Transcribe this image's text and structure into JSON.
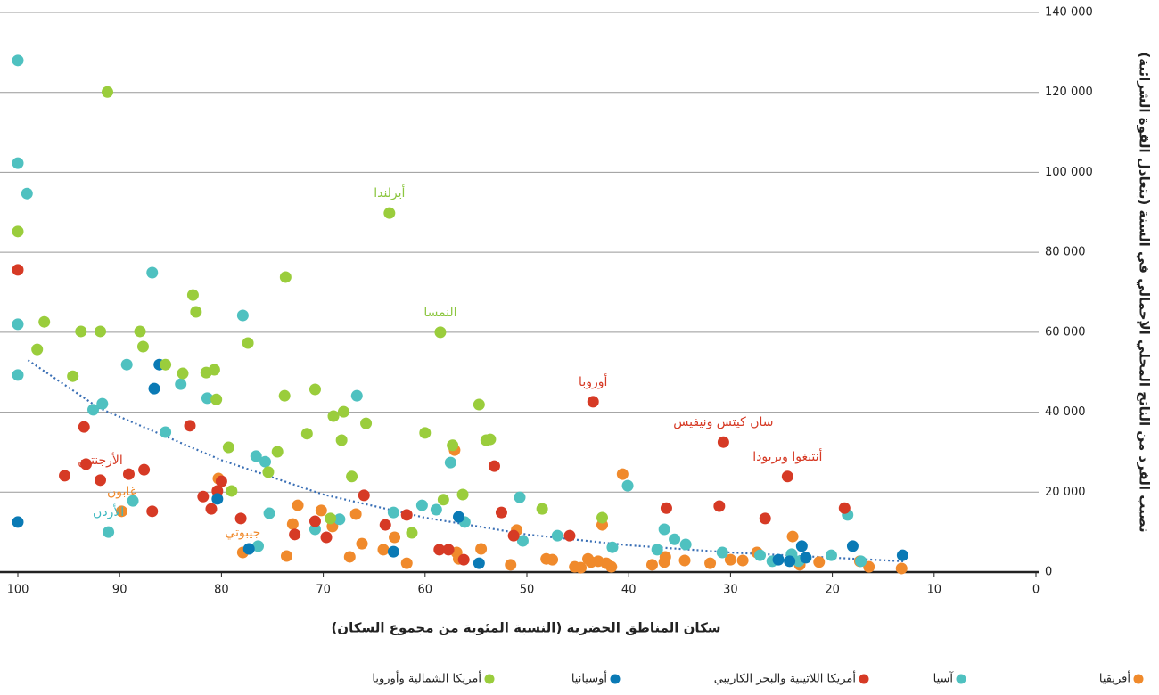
{
  "chart_data": {
    "type": "scatter",
    "xlabel": "سكان المناطق الحضرية (النسبة المئوية من مجموع السكان)",
    "ylabel": "نصيب الفرد من الناتج المحلي الإجمالي في السنة (بتعادل القوة الشرائية)",
    "xlim": [
      100,
      0
    ],
    "ylim": [
      0,
      140000
    ],
    "xticks": [
      100,
      90,
      80,
      70,
      60,
      50,
      40,
      30,
      20,
      10,
      0
    ],
    "yticks": [
      0,
      {
        "value": 20000,
        "label": "20 000"
      },
      {
        "value": 40000,
        "label": "40 000"
      },
      {
        "value": 60000,
        "label": "60 000"
      },
      {
        "value": 80000,
        "label": "80 000"
      },
      {
        "value": 100000,
        "label": "100 000"
      },
      {
        "value": 120000,
        "label": "120 000"
      },
      {
        "value": 140000,
        "label": "140 000"
      }
    ],
    "grid": true,
    "series": [
      {
        "name": "أفريقيا",
        "color": "#f08a2c",
        "x": [
          89.8,
          77.9,
          80.3,
          73.6,
          72.5,
          73,
          70.2,
          69.1,
          66.8,
          67.4,
          66.2,
          64.1,
          63,
          61.8,
          57.1,
          56.9,
          56.7,
          54.5,
          51.6,
          51,
          48.1,
          47.5,
          45.3,
          44.7,
          44,
          43.7,
          43,
          42.6,
          42.2,
          41.7,
          40.6,
          37.7,
          36.5,
          36.4,
          34.5,
          32,
          30,
          28.8,
          27.4,
          23.9,
          23.2,
          21.3,
          17.3,
          16.4,
          13.2
        ],
        "values": [
          15200,
          4900,
          23400,
          4000,
          16700,
          12000,
          15400,
          11400,
          14500,
          3800,
          7100,
          5600,
          8700,
          2200,
          30500,
          4900,
          3300,
          5800,
          1800,
          10500,
          3300,
          3100,
          1300,
          1100,
          3300,
          2500,
          2700,
          11800,
          2200,
          1300,
          24500,
          1800,
          2500,
          3800,
          2900,
          2200,
          3100,
          2900,
          4900,
          8900,
          1800,
          2500,
          2700,
          1300,
          900
        ]
      },
      {
        "name": "آسيا",
        "color": "#4fc1c0",
        "x": [
          100,
          100,
          99.1,
          100,
          100,
          89.3,
          92.6,
          91.7,
          91.1,
          88.7,
          86.8,
          85.5,
          84,
          81.4,
          77.9,
          76.6,
          75.7,
          75.3,
          76.4,
          66.7,
          70.8,
          68.4,
          63.1,
          60.3,
          58.9,
          57.5,
          56.1,
          50.7,
          50.4,
          47,
          41.6,
          40.1,
          37.2,
          36.5,
          35.5,
          34.4,
          30.8,
          27.1,
          25.9,
          24,
          20.1,
          18.5,
          17.2,
          23.3
        ],
        "values": [
          128000,
          102300,
          94700,
          62000,
          49300,
          51900,
          40600,
          42100,
          10000,
          17800,
          74900,
          35000,
          47000,
          43500,
          64200,
          29000,
          27600,
          14700,
          6500,
          44100,
          10700,
          13200,
          14900,
          16700,
          15600,
          27400,
          12500,
          18700,
          7800,
          9100,
          6200,
          21600,
          5600,
          10700,
          8200,
          6900,
          4900,
          4200,
          2700,
          4500,
          4200,
          14300,
          2700,
          2700
        ]
      },
      {
        "name": "أمريكا اللاتينية والبحر الكاريبي",
        "color": "#d63a25",
        "x": [
          100,
          93.5,
          95.4,
          93.3,
          91.9,
          89.1,
          87.6,
          86.8,
          83.1,
          81.8,
          81,
          80.4,
          80,
          78.1,
          72.8,
          70.8,
          69.7,
          66,
          63.9,
          61.8,
          58.6,
          57.7,
          56.2,
          53.2,
          52.5,
          51.3,
          45.8,
          43.5,
          36.3,
          31.1,
          30.7,
          26.6,
          24.4,
          18.8
        ],
        "values": [
          75600,
          36300,
          24100,
          27000,
          23000,
          24500,
          25600,
          15200,
          36600,
          18900,
          15800,
          20300,
          22700,
          13400,
          9400,
          12700,
          8700,
          19200,
          11800,
          14300,
          5600,
          5600,
          3100,
          26500,
          14900,
          9100,
          9100,
          42600,
          16000,
          16500,
          32500,
          13400,
          23900,
          16000
        ]
      },
      {
        "name": "أوسيانيا",
        "color": "#0a7ab5",
        "x": [
          100,
          86.1,
          86.6,
          80.4,
          77.3,
          63.1,
          56.7,
          54.7,
          25.3,
          24.2,
          23,
          22.6,
          18,
          13.1
        ],
        "values": [
          12500,
          51900,
          45900,
          18300,
          5800,
          5100,
          13800,
          2200,
          3100,
          2700,
          6500,
          3600,
          6500,
          4200
        ]
      },
      {
        "name": "أمريكا الشمالية وأوروبا",
        "color": "#9acd3c",
        "x": [
          100,
          63.5,
          91.2,
          97.4,
          98.1,
          94.6,
          93.8,
          91.9,
          88,
          87.7,
          85.5,
          83.8,
          82.8,
          82.5,
          81.5,
          80.7,
          80.5,
          79.3,
          79,
          77.4,
          75.4,
          74.5,
          73.7,
          73.8,
          71.6,
          70.8,
          69,
          68,
          68.2,
          67.2,
          65.8,
          61.3,
          60,
          58.5,
          58.2,
          57.3,
          56.3,
          54.7,
          54,
          53.6,
          48.5,
          42.6,
          69.3
        ],
        "values": [
          85200,
          89800,
          120100,
          62600,
          55700,
          49000,
          60200,
          60200,
          60200,
          56400,
          51900,
          49700,
          69300,
          65100,
          49900,
          50600,
          43200,
          31200,
          20300,
          57300,
          25000,
          30100,
          73800,
          44100,
          34600,
          45700,
          39000,
          40100,
          33000,
          23900,
          37200,
          9800,
          34800,
          60000,
          18100,
          31700,
          19400,
          41900,
          33000,
          33200,
          15800,
          13600,
          13400
        ]
      }
    ],
    "trendline": {
      "color": "#3a6fb5",
      "x": [
        99,
        92,
        80,
        70,
        60,
        50,
        40,
        30,
        20,
        13
      ],
      "y": [
        53000,
        41000,
        28000,
        19400,
        13600,
        9400,
        6700,
        4900,
        3600,
        2700
      ]
    },
    "annotations": [
      {
        "text": "أيرلندا",
        "x": 63.5,
        "y": 89800,
        "color": "#8cc63f"
      },
      {
        "text": "النمسا",
        "x": 58.5,
        "y": 60000,
        "color": "#8cc63f"
      },
      {
        "text": "أوروبا",
        "x": 43.5,
        "y": 42600,
        "color": "#d63a25"
      },
      {
        "text": "سان كيتس ونيفيس",
        "x": 30.7,
        "y": 32500,
        "color": "#d63a25"
      },
      {
        "text": "أنتيغوا وبربودا",
        "x": 24.4,
        "y": 23900,
        "color": "#d63a25"
      },
      {
        "text": "الأرجنتين",
        "x": 91.9,
        "y": 23000,
        "color": "#d63a25"
      },
      {
        "text": "غابون",
        "x": 89.8,
        "y": 15200,
        "color": "#f08a2c"
      },
      {
        "text": "الأردن",
        "x": 91.1,
        "y": 10000,
        "color": "#3cb8c0"
      },
      {
        "text": "جيبوتي",
        "x": 77.9,
        "y": 4900,
        "color": "#f08a2c"
      }
    ]
  }
}
